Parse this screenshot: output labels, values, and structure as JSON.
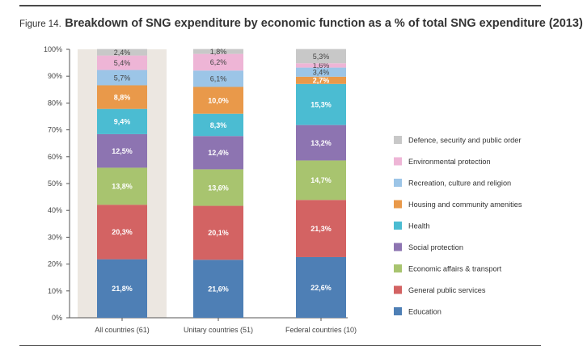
{
  "figure": {
    "label": "Figure 14.",
    "title": "Breakdown of SNG expenditure by economic function as a % of total SNG expenditure (2013)"
  },
  "chart_data": {
    "type": "bar",
    "stacked": true,
    "categories": [
      "All countries (61)",
      "Unitary countries (51)",
      "Federal countries (10)"
    ],
    "highlighted_category": "All countries (61)",
    "ylim": [
      0,
      100
    ],
    "yticks": [
      "0%",
      "10%",
      "20%",
      "30%",
      "40%",
      "50%",
      "60%",
      "70%",
      "80%",
      "90%",
      "100%"
    ],
    "legend_position": "right",
    "series": [
      {
        "name": "Education",
        "color": "#4e7fb5",
        "values": [
          21.8,
          21.6,
          22.6
        ],
        "labels": [
          "21,8%",
          "21,6%",
          "22,6%"
        ]
      },
      {
        "name": "General public services",
        "color": "#d36363",
        "values": [
          20.3,
          20.1,
          21.3
        ],
        "labels": [
          "20,3%",
          "20,1%",
          "21,3%"
        ]
      },
      {
        "name": "Economic affairs & transport",
        "color": "#a8c46f",
        "values": [
          13.8,
          13.6,
          14.7
        ],
        "labels": [
          "13,8%",
          "13,6%",
          "14,7%"
        ]
      },
      {
        "name": "Social protection",
        "color": "#8d74b1",
        "values": [
          12.5,
          12.4,
          13.2
        ],
        "labels": [
          "12,5%",
          "12,4%",
          "13,2%"
        ]
      },
      {
        "name": "Health",
        "color": "#4bbcd2",
        "values": [
          9.4,
          8.3,
          15.3
        ],
        "labels": [
          "9,4%",
          "8,3%",
          "15,3%"
        ]
      },
      {
        "name": "Housing and community amenities",
        "color": "#e9994a",
        "values": [
          8.8,
          10.0,
          2.7
        ],
        "labels": [
          "8,8%",
          "10,0%",
          "2,7%"
        ]
      },
      {
        "name": "Recreation, culture and religion",
        "color": "#9cc5e7",
        "values": [
          5.7,
          6.1,
          3.4
        ],
        "labels": [
          "5,7%",
          "6,1%",
          "3,4%"
        ]
      },
      {
        "name": "Environmental protection",
        "color": "#eeb5d6",
        "values": [
          5.4,
          6.2,
          1.6
        ],
        "labels": [
          "5,4%",
          "6,2%",
          "1,6%"
        ]
      },
      {
        "name": "Defence, security and public order",
        "color": "#c8c8c8",
        "values": [
          2.4,
          1.8,
          5.3
        ],
        "labels": [
          "2,4%",
          "1,8%",
          "5,3%"
        ]
      }
    ]
  }
}
